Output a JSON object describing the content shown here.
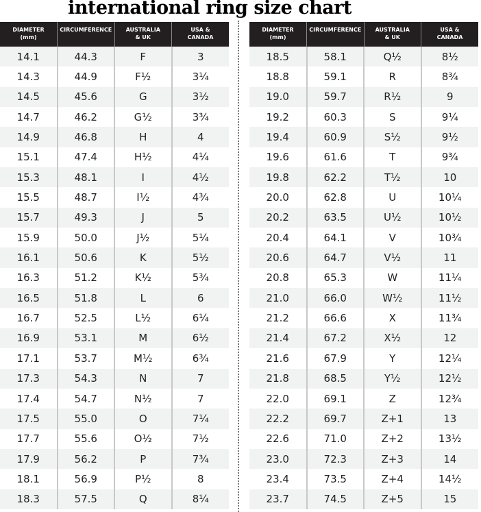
{
  "title": "international ring size chart",
  "headers": [
    [
      "DIAMETER",
      "(mm)"
    ],
    [
      "CIRCUMFERENCE",
      ""
    ],
    [
      "AUSTRALIA",
      "& UK"
    ],
    [
      "USA &",
      "CANADA"
    ]
  ],
  "left_rows": [
    [
      "14.1",
      "44.3",
      "F",
      "3"
    ],
    [
      "14.3",
      "44.9",
      "F½",
      "3¼"
    ],
    [
      "14.5",
      "45.6",
      "G",
      "3½"
    ],
    [
      "14.7",
      "46.2",
      "G½",
      "3¾"
    ],
    [
      "14.9",
      "46.8",
      "H",
      "4"
    ],
    [
      "15.1",
      "47.4",
      "H½",
      "4¼"
    ],
    [
      "15.3",
      "48.1",
      "I",
      "4½"
    ],
    [
      "15.5",
      "48.7",
      "I½",
      "4¾"
    ],
    [
      "15.7",
      "49.3",
      "J",
      "5"
    ],
    [
      "15.9",
      "50.0",
      "J½",
      "5¼"
    ],
    [
      "16.1",
      "50.6",
      "K",
      "5½"
    ],
    [
      "16.3",
      "51.2",
      "K½",
      "5¾"
    ],
    [
      "16.5",
      "51.8",
      "L",
      "6"
    ],
    [
      "16.7",
      "52.5",
      "L½",
      "6¼"
    ],
    [
      "16.9",
      "53.1",
      "M",
      "6½"
    ],
    [
      "17.1",
      "53.7",
      "M½",
      "6¾"
    ],
    [
      "17.3",
      "54.3",
      "N",
      "7"
    ],
    [
      "17.4",
      "54.7",
      "N½",
      "7"
    ],
    [
      "17.5",
      "55.0",
      "O",
      "7¼"
    ],
    [
      "17.7",
      "55.6",
      "O½",
      "7½"
    ],
    [
      "17.9",
      "56.2",
      "P",
      "7¾"
    ],
    [
      "18.1",
      "56.9",
      "P½",
      "8"
    ],
    [
      "18.3",
      "57.5",
      "Q",
      "8¼"
    ]
  ],
  "right_rows": [
    [
      "18.5",
      "58.1",
      "Q½",
      "8½"
    ],
    [
      "18.8",
      "59.1",
      "R",
      "8¾"
    ],
    [
      "19.0",
      "59.7",
      "R½",
      "9"
    ],
    [
      "19.2",
      "60.3",
      "S",
      "9¼"
    ],
    [
      "19.4",
      "60.9",
      "S½",
      "9½"
    ],
    [
      "19.6",
      "61.6",
      "T",
      "9¾"
    ],
    [
      "19.8",
      "62.2",
      "T½",
      "10"
    ],
    [
      "20.0",
      "62.8",
      "U",
      "10¼"
    ],
    [
      "20.2",
      "63.5",
      "U½",
      "10½"
    ],
    [
      "20.4",
      "64.1",
      "V",
      "10¾"
    ],
    [
      "20.6",
      "64.7",
      "V½",
      "11"
    ],
    [
      "20.8",
      "65.3",
      "W",
      "11¼"
    ],
    [
      "21.0",
      "66.0",
      "W½",
      "11½"
    ],
    [
      "21.2",
      "66.6",
      "X",
      "11¾"
    ],
    [
      "21.4",
      "67.2",
      "X½",
      "12"
    ],
    [
      "21.6",
      "67.9",
      "Y",
      "12¼"
    ],
    [
      "21.8",
      "68.5",
      "Y½",
      "12½"
    ],
    [
      "22.0",
      "69.1",
      "Z",
      "12¾"
    ],
    [
      "22.2",
      "69.7",
      "Z+1",
      "13"
    ],
    [
      "22.6",
      "71.0",
      "Z+2",
      "13½"
    ],
    [
      "23.0",
      "72.3",
      "Z+3",
      "14"
    ],
    [
      "23.4",
      "73.5",
      "Z+4",
      "14½"
    ],
    [
      "23.7",
      "74.5",
      "Z+5",
      "15"
    ]
  ],
  "colors": {
    "header_bg": "#231f20",
    "stripe": "#f1f2f2"
  }
}
